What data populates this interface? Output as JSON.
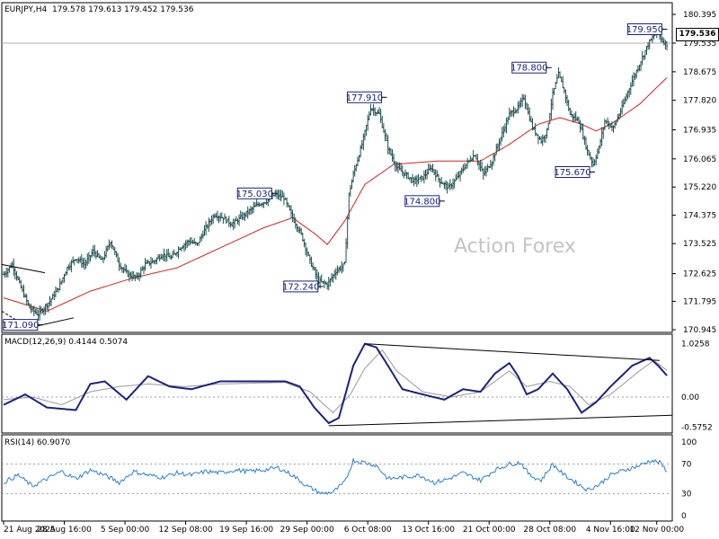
{
  "header": {
    "symbol": "EURJPY,H4",
    "ohlc": "179.578 179.613 179.452 179.536"
  },
  "watermark": "Action Forex",
  "current_price_label": "179.536",
  "colors": {
    "candle": "#1d4e4e",
    "ma": "#d42020",
    "macd": "#1a237e",
    "signal": "#999999",
    "rsi": "#2a7fd4",
    "grid": "#000000"
  },
  "chart_data": [
    {
      "type": "candlestick",
      "title": "EURJPY,H4",
      "y_ticks": [
        170.945,
        171.795,
        172.625,
        173.525,
        174.375,
        175.22,
        176.065,
        176.935,
        177.82,
        178.675,
        179.535,
        180.395
      ],
      "y_tick_labels": [
        "170.945",
        "171.795",
        "172.625",
        "173.525",
        "174.375",
        "175.220",
        "176.065",
        "176.935",
        "177.820",
        "178.675",
        "179.535",
        "180.395"
      ],
      "ylim": [
        170.945,
        180.395
      ],
      "x_tick_labels": [
        "21 Aug 2025",
        "28 Aug 16:00",
        "5 Sep 00:00",
        "12 Sep 08:00",
        "19 Sep 16:00",
        "29 Sep 00:00",
        "6 Oct 08:00",
        "13 Oct 16:00",
        "21 Oct 00:00",
        "28 Oct 08:00",
        "4 Nov 16:00",
        "12 Nov 00:00"
      ],
      "annotations": [
        "171.090",
        "175.030",
        "172.240",
        "177.910",
        "174.800",
        "178.800",
        "175.670",
        "179.950"
      ],
      "price_anchors": [
        [
          0,
          172.6
        ],
        [
          6,
          172.9
        ],
        [
          12,
          172.2
        ],
        [
          18,
          171.6
        ],
        [
          24,
          171.4
        ],
        [
          32,
          171.8
        ],
        [
          38,
          172.2
        ],
        [
          44,
          172.8
        ],
        [
          50,
          173.1
        ],
        [
          56,
          172.9
        ],
        [
          62,
          173.3
        ],
        [
          68,
          173.0
        ],
        [
          74,
          173.6
        ],
        [
          80,
          172.9
        ],
        [
          86,
          172.6
        ],
        [
          92,
          172.5
        ],
        [
          98,
          172.9
        ],
        [
          104,
          173.0
        ],
        [
          110,
          173.2
        ],
        [
          116,
          173.1
        ],
        [
          122,
          173.4
        ],
        [
          128,
          173.6
        ],
        [
          134,
          173.5
        ],
        [
          140,
          174.0
        ],
        [
          146,
          174.4
        ],
        [
          152,
          174.3
        ],
        [
          158,
          174.1
        ],
        [
          164,
          174.3
        ],
        [
          170,
          174.5
        ],
        [
          176,
          174.7
        ],
        [
          182,
          174.8
        ],
        [
          188,
          175.0
        ],
        [
          194,
          174.9
        ],
        [
          200,
          174.3
        ],
        [
          206,
          173.8
        ],
        [
          212,
          173.0
        ],
        [
          218,
          172.4
        ],
        [
          224,
          172.3
        ],
        [
          230,
          172.7
        ],
        [
          236,
          172.9
        ],
        [
          239,
          175.0
        ],
        [
          242,
          175.6
        ],
        [
          248,
          176.5
        ],
        [
          254,
          177.6
        ],
        [
          260,
          177.4
        ],
        [
          266,
          176.4
        ],
        [
          272,
          175.8
        ],
        [
          278,
          175.6
        ],
        [
          284,
          175.4
        ],
        [
          290,
          175.5
        ],
        [
          296,
          175.8
        ],
        [
          302,
          175.4
        ],
        [
          308,
          175.2
        ],
        [
          314,
          175.5
        ],
        [
          320,
          175.9
        ],
        [
          326,
          176.2
        ],
        [
          332,
          175.6
        ],
        [
          338,
          176.0
        ],
        [
          344,
          176.7
        ],
        [
          350,
          177.4
        ],
        [
          356,
          177.6
        ],
        [
          360,
          177.9
        ],
        [
          366,
          177.0
        ],
        [
          372,
          176.6
        ],
        [
          376,
          176.9
        ],
        [
          380,
          178.0
        ],
        [
          384,
          178.6
        ],
        [
          388,
          178.1
        ],
        [
          392,
          177.4
        ],
        [
          398,
          177.2
        ],
        [
          404,
          176.3
        ],
        [
          408,
          175.9
        ],
        [
          412,
          176.4
        ],
        [
          416,
          177.2
        ],
        [
          422,
          177.0
        ],
        [
          428,
          177.6
        ],
        [
          434,
          178.3
        ],
        [
          440,
          178.9
        ],
        [
          446,
          179.5
        ],
        [
          452,
          179.9
        ],
        [
          456,
          179.6
        ],
        [
          459,
          179.5
        ]
      ],
      "ma_anchors": [
        [
          0,
          171.9
        ],
        [
          30,
          171.5
        ],
        [
          60,
          172.1
        ],
        [
          90,
          172.5
        ],
        [
          120,
          172.8
        ],
        [
          150,
          173.4
        ],
        [
          180,
          174.0
        ],
        [
          200,
          174.3
        ],
        [
          216,
          173.8
        ],
        [
          224,
          173.5
        ],
        [
          236,
          174.2
        ],
        [
          250,
          175.3
        ],
        [
          270,
          175.9
        ],
        [
          300,
          176.0
        ],
        [
          330,
          176.0
        ],
        [
          350,
          176.5
        ],
        [
          370,
          177.1
        ],
        [
          385,
          177.3
        ],
        [
          400,
          177.1
        ],
        [
          410,
          176.9
        ],
        [
          420,
          177.1
        ],
        [
          440,
          177.7
        ],
        [
          459,
          178.5
        ]
      ]
    },
    {
      "type": "line",
      "title": "MACD(12,26,9) 0.4144 0.5074",
      "y_tick_labels": [
        "1.0258",
        "0.00",
        "-0.5752"
      ],
      "ylim": [
        -0.62,
        1.1
      ],
      "series": [
        {
          "name": "MACD",
          "anchors": [
            [
              0,
              -0.15
            ],
            [
              15,
              0.05
            ],
            [
              30,
              -0.2
            ],
            [
              50,
              -0.25
            ],
            [
              60,
              0.25
            ],
            [
              70,
              0.3
            ],
            [
              85,
              -0.05
            ],
            [
              100,
              0.4
            ],
            [
              115,
              0.2
            ],
            [
              130,
              0.15
            ],
            [
              150,
              0.3
            ],
            [
              170,
              0.3
            ],
            [
              195,
              0.3
            ],
            [
              205,
              0.2
            ],
            [
              215,
              -0.2
            ],
            [
              225,
              -0.5
            ],
            [
              232,
              -0.4
            ],
            [
              242,
              0.6
            ],
            [
              250,
              1.02
            ],
            [
              258,
              0.95
            ],
            [
              266,
              0.6
            ],
            [
              276,
              0.15
            ],
            [
              290,
              0.05
            ],
            [
              305,
              -0.05
            ],
            [
              318,
              0.15
            ],
            [
              330,
              0.1
            ],
            [
              340,
              0.45
            ],
            [
              350,
              0.65
            ],
            [
              356,
              0.4
            ],
            [
              362,
              0.05
            ],
            [
              370,
              0.15
            ],
            [
              380,
              0.45
            ],
            [
              390,
              0.15
            ],
            [
              400,
              -0.3
            ],
            [
              410,
              -0.1
            ],
            [
              420,
              0.2
            ],
            [
              435,
              0.6
            ],
            [
              447,
              0.75
            ],
            [
              453,
              0.6
            ],
            [
              459,
              0.41
            ]
          ]
        },
        {
          "name": "Signal",
          "anchors": [
            [
              0,
              -0.05
            ],
            [
              20,
              0.0
            ],
            [
              40,
              -0.15
            ],
            [
              60,
              0.1
            ],
            [
              80,
              0.2
            ],
            [
              100,
              0.25
            ],
            [
              125,
              0.2
            ],
            [
              150,
              0.25
            ],
            [
              195,
              0.28
            ],
            [
              212,
              0.1
            ],
            [
              228,
              -0.3
            ],
            [
              240,
              0.05
            ],
            [
              250,
              0.55
            ],
            [
              262,
              0.9
            ],
            [
              272,
              0.5
            ],
            [
              290,
              0.1
            ],
            [
              310,
              0.0
            ],
            [
              330,
              0.1
            ],
            [
              350,
              0.5
            ],
            [
              362,
              0.2
            ],
            [
              378,
              0.3
            ],
            [
              392,
              0.2
            ],
            [
              405,
              -0.15
            ],
            [
              420,
              0.05
            ],
            [
              440,
              0.5
            ],
            [
              450,
              0.7
            ],
            [
              459,
              0.51
            ]
          ]
        }
      ]
    },
    {
      "type": "line",
      "title": "RSI(14) 60.9070",
      "y_tick_labels": [
        "100",
        "70",
        "30",
        "0"
      ],
      "ylim": [
        0,
        100
      ],
      "series": [
        {
          "name": "RSI",
          "anchors": [
            [
              0,
              45
            ],
            [
              10,
              55
            ],
            [
              20,
              40
            ],
            [
              30,
              50
            ],
            [
              40,
              60
            ],
            [
              50,
              50
            ],
            [
              60,
              62
            ],
            [
              70,
              55
            ],
            [
              80,
              45
            ],
            [
              90,
              60
            ],
            [
              100,
              55
            ],
            [
              110,
              52
            ],
            [
              120,
              58
            ],
            [
              130,
              55
            ],
            [
              140,
              60
            ],
            [
              150,
              58
            ],
            [
              160,
              62
            ],
            [
              170,
              60
            ],
            [
              180,
              62
            ],
            [
              190,
              65
            ],
            [
              200,
              55
            ],
            [
              210,
              40
            ],
            [
              220,
              30
            ],
            [
              228,
              32
            ],
            [
              236,
              45
            ],
            [
              242,
              75
            ],
            [
              250,
              72
            ],
            [
              258,
              68
            ],
            [
              266,
              50
            ],
            [
              276,
              52
            ],
            [
              288,
              55
            ],
            [
              298,
              45
            ],
            [
              308,
              50
            ],
            [
              318,
              58
            ],
            [
              330,
              48
            ],
            [
              340,
              62
            ],
            [
              350,
              70
            ],
            [
              358,
              72
            ],
            [
              364,
              55
            ],
            [
              372,
              48
            ],
            [
              380,
              70
            ],
            [
              388,
              55
            ],
            [
              396,
              45
            ],
            [
              404,
              35
            ],
            [
              412,
              42
            ],
            [
              420,
              55
            ],
            [
              430,
              62
            ],
            [
              440,
              68
            ],
            [
              448,
              75
            ],
            [
              454,
              72
            ],
            [
              459,
              61
            ]
          ]
        }
      ]
    }
  ]
}
